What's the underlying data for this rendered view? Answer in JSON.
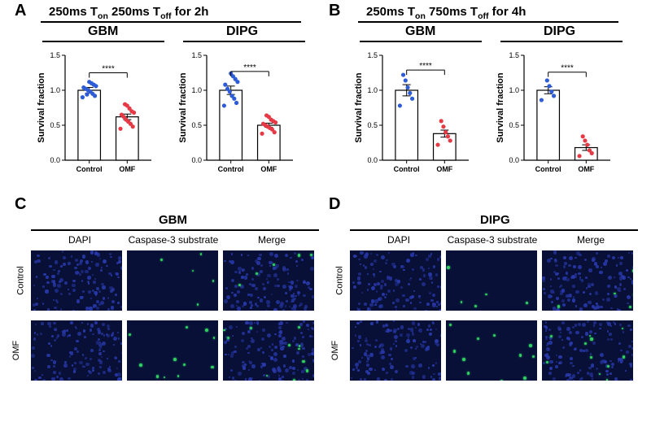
{
  "panelA": {
    "label": "A",
    "title": "250ms T<sub>on</sub> 250ms T<sub>off</sub> for 2h",
    "charts": [
      {
        "cell_line": "GBM",
        "type": "bar",
        "ylabel": "Survival fraction",
        "ylim": [
          0,
          1.5
        ],
        "yticks": [
          0,
          0.5,
          1.0,
          1.5
        ],
        "categories": [
          "Control",
          "OMF"
        ],
        "bars": [
          {
            "mean": 1.0,
            "sem": 0.04,
            "points": [
              0.9,
              0.92,
              0.95,
              0.98,
              1.0,
              1.02,
              1.04,
              1.06,
              1.08,
              1.1,
              1.12,
              0.94
            ],
            "color": "#2e5cd6"
          },
          {
            "mean": 0.62,
            "sem": 0.04,
            "points": [
              0.45,
              0.48,
              0.52,
              0.55,
              0.58,
              0.62,
              0.65,
              0.68,
              0.7,
              0.74,
              0.78,
              0.8
            ],
            "color": "#e63946"
          }
        ],
        "significance": "****",
        "bar_fill": "#ffffff",
        "bar_stroke": "#000000",
        "axis_color": "#000000",
        "label_fontsize": 11,
        "tick_fontsize": 9
      },
      {
        "cell_line": "DIPG",
        "type": "bar",
        "ylabel": "Survival fraction",
        "ylim": [
          0,
          1.5
        ],
        "yticks": [
          0,
          0.5,
          1.0,
          1.5
        ],
        "categories": [
          "Control",
          "OMF"
        ],
        "bars": [
          {
            "mean": 1.0,
            "sem": 0.06,
            "points": [
              0.78,
              0.82,
              0.88,
              0.92,
              0.98,
              1.02,
              1.08,
              1.12,
              1.16,
              1.2,
              1.24
            ],
            "color": "#2e5cd6"
          },
          {
            "mean": 0.5,
            "sem": 0.03,
            "points": [
              0.38,
              0.4,
              0.44,
              0.46,
              0.48,
              0.5,
              0.52,
              0.54,
              0.56,
              0.58,
              0.62,
              0.64
            ],
            "color": "#e63946"
          }
        ],
        "significance": "****",
        "bar_fill": "#ffffff",
        "bar_stroke": "#000000",
        "axis_color": "#000000",
        "label_fontsize": 11,
        "tick_fontsize": 9
      }
    ]
  },
  "panelB": {
    "label": "B",
    "title": "250ms T<sub>on</sub> 750ms T<sub>off</sub> for 4h",
    "charts": [
      {
        "cell_line": "GBM",
        "type": "bar",
        "ylabel": "Survival fraction",
        "ylim": [
          0,
          1.5
        ],
        "yticks": [
          0,
          0.5,
          1.0,
          1.5
        ],
        "categories": [
          "Control",
          "OMF"
        ],
        "bars": [
          {
            "mean": 1.0,
            "sem": 0.08,
            "points": [
              0.78,
              0.88,
              0.96,
              1.04,
              1.14,
              1.22
            ],
            "color": "#2e5cd6"
          },
          {
            "mean": 0.38,
            "sem": 0.05,
            "points": [
              0.22,
              0.28,
              0.34,
              0.4,
              0.48,
              0.56
            ],
            "color": "#e63946"
          }
        ],
        "significance": "****",
        "bar_fill": "#ffffff",
        "bar_stroke": "#000000",
        "axis_color": "#000000",
        "label_fontsize": 11,
        "tick_fontsize": 9
      },
      {
        "cell_line": "DIPG",
        "type": "bar",
        "ylabel": "Survival fraction",
        "ylim": [
          0,
          1.5
        ],
        "yticks": [
          0,
          0.5,
          1.0,
          1.5
        ],
        "categories": [
          "Control",
          "OMF"
        ],
        "bars": [
          {
            "mean": 1.0,
            "sem": 0.05,
            "points": [
              0.86,
              0.92,
              0.98,
              1.06,
              1.14
            ],
            "color": "#2e5cd6"
          },
          {
            "mean": 0.18,
            "sem": 0.04,
            "points": [
              0.06,
              0.1,
              0.14,
              0.22,
              0.28,
              0.34
            ],
            "color": "#e63946"
          }
        ],
        "significance": "****",
        "bar_fill": "#ffffff",
        "bar_stroke": "#000000",
        "axis_color": "#000000",
        "label_fontsize": 11,
        "tick_fontsize": 9
      }
    ]
  },
  "panelC": {
    "label": "C",
    "cell_line": "GBM",
    "columns": [
      "DAPI",
      "Caspase-3 substrate",
      "Merge"
    ],
    "rows": [
      "Control",
      "OMF"
    ],
    "bg_color": "#081038",
    "dapi_color": "#2838a8",
    "caspase_color": "#30d060"
  },
  "panelD": {
    "label": "D",
    "cell_line": "DIPG",
    "columns": [
      "DAPI",
      "Caspase-3 substrate",
      "Merge"
    ],
    "rows": [
      "Control",
      "OMF"
    ],
    "bg_color": "#081038",
    "dapi_color": "#2838a8",
    "caspase_color": "#30d060"
  }
}
